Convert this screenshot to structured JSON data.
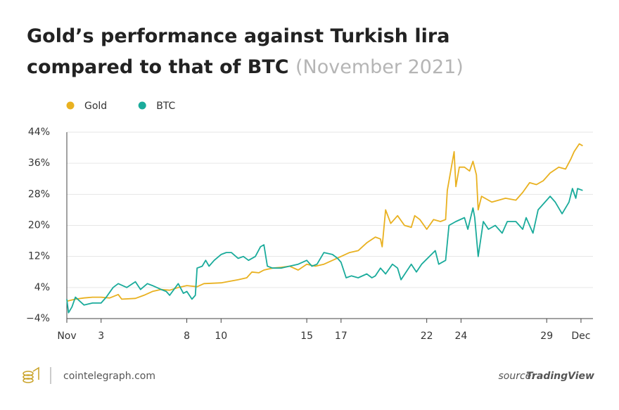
{
  "chart_data": {
    "type": "line",
    "title": "Gold’s performance against Turkish lira compared to that of BTC",
    "subtitle": "(November 2021)",
    "xlim": [
      1,
      31.7
    ],
    "xticks": [
      {
        "value": 1,
        "label": "Nov"
      },
      3,
      8,
      10,
      15,
      17,
      22,
      24,
      29,
      {
        "value": 31,
        "label": "Dec"
      }
    ],
    "ylim": [
      -4,
      44
    ],
    "yticks": [
      {
        "value": -4,
        "label": "−4%"
      },
      {
        "value": 4,
        "label": "4%"
      },
      {
        "value": 12,
        "label": "12%"
      },
      {
        "value": 20,
        "label": "20%"
      },
      {
        "value": 28,
        "label": "28%"
      },
      {
        "value": 36,
        "label": "36%"
      },
      {
        "value": 44,
        "label": "44%"
      }
    ],
    "grid": true,
    "legend": "top-left",
    "series": [
      {
        "name": "Gold",
        "color": "#e9b120",
        "x": [
          1,
          1.5,
          2,
          2.5,
          3,
          3.5,
          4,
          4.2,
          5,
          5.5,
          6,
          6.5,
          7,
          7.5,
          8,
          8.6,
          9,
          10,
          11,
          11.5,
          11.8,
          12.2,
          12.5,
          13,
          13.5,
          14,
          14.5,
          15,
          15.5,
          16,
          16.5,
          17,
          17.5,
          18,
          18.5,
          19,
          19.3,
          19.4,
          19.6,
          19.9,
          20.3,
          20.7,
          21.1,
          21.3,
          21.6,
          22,
          22.4,
          22.8,
          23.1,
          23.2,
          23.6,
          23.7,
          23.9,
          24.2,
          24.5,
          24.7,
          24.9,
          25,
          25.2,
          25.8,
          26.6,
          27.2,
          27.6,
          28,
          28.4,
          28.8,
          29.2,
          29.7,
          30.1,
          30.4,
          30.6,
          30.9,
          31.1
        ],
        "values": [
          0.5,
          1,
          1.3,
          1.5,
          1.5,
          1.3,
          2.2,
          1,
          1.2,
          2,
          3,
          3.5,
          3.3,
          4,
          4.5,
          4.2,
          5,
          5.2,
          6,
          6.5,
          8,
          7.8,
          8.5,
          9,
          9.2,
          9.5,
          8.5,
          10,
          9.5,
          10,
          11,
          12,
          13,
          13.5,
          15.5,
          17,
          16.5,
          14.5,
          24,
          20.5,
          22.5,
          20,
          19.5,
          22.5,
          21.5,
          19,
          21.5,
          21,
          21.5,
          29,
          39,
          30,
          35,
          35,
          34,
          36.5,
          33,
          24,
          27.5,
          26,
          27,
          26.5,
          28.5,
          31,
          30.5,
          31.5,
          33.5,
          35,
          34.5,
          37,
          39,
          41,
          40.5
        ]
      },
      {
        "name": "BTC",
        "color": "#1aab9b",
        "x": [
          1,
          1.1,
          1.3,
          1.5,
          2,
          2.5,
          3,
          3.3,
          3.7,
          4,
          4.5,
          5,
          5.3,
          5.7,
          6,
          6.5,
          6.8,
          7,
          7.5,
          7.8,
          8,
          8.3,
          8.5,
          8.6,
          8.9,
          9.1,
          9.3,
          9.6,
          10,
          10.3,
          10.6,
          11,
          11.3,
          11.6,
          12,
          12.3,
          12.5,
          12.7,
          13,
          13.5,
          14,
          14.5,
          15,
          15.3,
          15.6,
          16,
          16.5,
          16.8,
          17,
          17.3,
          17.6,
          18,
          18.5,
          18.8,
          19,
          19.3,
          19.6,
          20,
          20.3,
          20.5,
          20.8,
          21.1,
          21.4,
          21.7,
          22.5,
          22.7,
          23.1,
          23.3,
          23.7,
          24.2,
          24.4,
          24.7,
          24.8,
          25,
          25.3,
          25.6,
          26,
          26.4,
          26.7,
          27.2,
          27.6,
          27.8,
          28.2,
          28.5,
          28.9,
          29.2,
          29.5,
          29.9,
          30.3,
          30.5,
          30.7,
          30.8,
          31.1
        ],
        "values": [
          1,
          -2.5,
          -1,
          1.5,
          -0.5,
          0,
          0,
          1.5,
          4,
          5,
          4,
          5.5,
          3.5,
          5,
          4.5,
          3.5,
          3,
          2,
          5,
          2.5,
          3,
          1,
          2,
          9,
          9.5,
          11,
          9.5,
          11,
          12.5,
          13,
          13,
          11.5,
          12,
          11,
          12,
          14.5,
          15,
          9.5,
          9,
          9,
          9.5,
          10,
          11,
          9.5,
          10,
          13,
          12.5,
          11.5,
          10.5,
          6.5,
          7,
          6.5,
          7.5,
          6.5,
          7,
          9,
          7.5,
          10,
          9,
          6,
          8,
          10,
          8,
          10,
          13.5,
          10,
          11,
          20,
          21,
          22,
          19,
          24.5,
          22,
          12,
          21,
          19,
          20,
          18,
          21,
          21,
          19,
          22,
          18,
          24,
          26,
          27.5,
          26,
          23,
          26,
          29.5,
          27,
          29.5,
          29
        ]
      }
    ],
    "footer": {
      "site": "cointelegraph.com",
      "source_label": "source:",
      "source": "TradingView"
    }
  }
}
